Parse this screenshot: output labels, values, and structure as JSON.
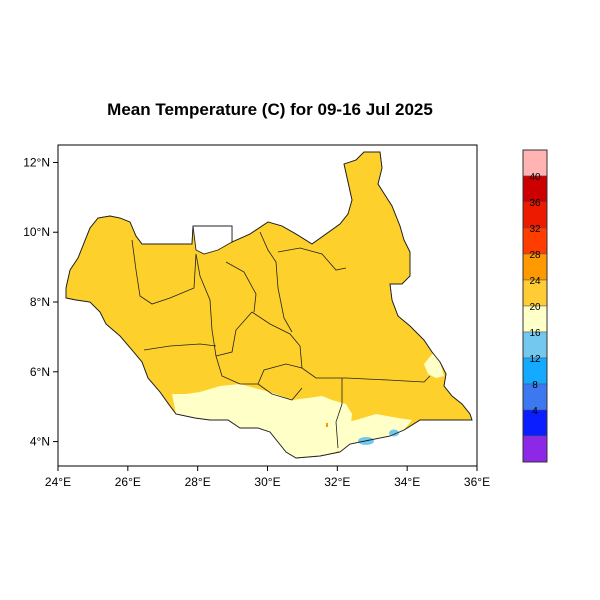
{
  "title": "Mean Temperature (C) for 09-16 Jul 2025",
  "map": {
    "x_ticks": [
      "24°E",
      "26°E",
      "28°E",
      "30°E",
      "32°E",
      "34°E",
      "36°E"
    ],
    "y_ticks": [
      "4°N",
      "6°N",
      "8°N",
      "10°N",
      "12°N"
    ],
    "xlim": [
      24,
      36
    ],
    "ylim": [
      3.3,
      12.5
    ]
  },
  "colorbar": {
    "labels": [
      "40",
      "36",
      "32",
      "28",
      "24",
      "20",
      "16",
      "12",
      "8",
      "4"
    ],
    "colors": [
      "#ffb3b3",
      "#cc0000",
      "#ee1a00",
      "#ff3d00",
      "#ff9900",
      "#ffcc33",
      "#ffffc8",
      "#73c8f0",
      "#14aaff",
      "#3c78f0",
      "#0a1eff",
      "#8c28e6"
    ]
  },
  "colors": {
    "warm": "#fdd02b",
    "mild": "#ffffc8",
    "cool": "#73c8f0",
    "border": "#222222"
  }
}
